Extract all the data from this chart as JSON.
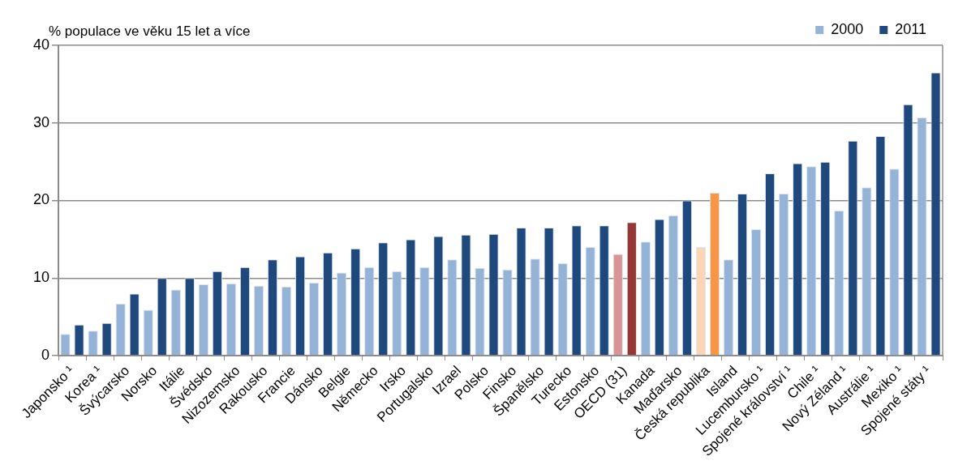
{
  "chart_data": {
    "type": "bar",
    "ylabel": "% populace ve věku 15 let a více",
    "categories": [
      "Japonsko ¹",
      "Korea ¹",
      "Švýcarsko",
      "Norsko",
      "Itálie",
      "Švédsko",
      "Nizozemsko",
      "Rakousko",
      "Francie",
      "Dánsko",
      "Belgie",
      "Německo",
      "Irsko",
      "Portugalsko",
      "Izrael",
      "Polsko",
      "Finsko",
      "Španělsko",
      "Turecko",
      "Estonsko",
      "OECD (31)",
      "Kanada",
      "Maďarsko",
      "Česká republika",
      "Island",
      "Lucembursko ¹",
      "Spojené království ¹",
      "Chile ¹",
      "Nový Zéland ¹",
      "Austrálie ¹",
      "Mexiko ¹",
      "Spojené státy ¹"
    ],
    "series": [
      {
        "name": "2000",
        "color": "#95b3d7",
        "colors": [
          "#95b3d7",
          "#95b3d7",
          "#95b3d7",
          "#95b3d7",
          "#95b3d7",
          "#95b3d7",
          "#95b3d7",
          "#95b3d7",
          "#95b3d7",
          "#95b3d7",
          "#95b3d7",
          "#95b3d7",
          "#95b3d7",
          "#95b3d7",
          "#95b3d7",
          "#95b3d7",
          "#95b3d7",
          "#95b3d7",
          "#95b3d7",
          "#95b3d7",
          "#d99594",
          "#95b3d7",
          "#95b3d7",
          "#fcd5b5",
          "#95b3d7",
          "#95b3d7",
          "#95b3d7",
          "#95b3d7",
          "#95b3d7",
          "#95b3d7",
          "#95b3d7",
          "#95b3d7"
        ],
        "values": [
          2.8,
          3.2,
          6.7,
          5.9,
          8.5,
          9.2,
          9.3,
          9.0,
          8.9,
          9.4,
          10.7,
          11.4,
          10.9,
          11.4,
          12.4,
          11.3,
          11.1,
          12.5,
          11.9,
          14.0,
          13.1,
          14.7,
          18.1,
          14.0,
          12.4,
          16.3,
          20.9,
          24.4,
          18.7,
          21.7,
          24.1,
          30.7
        ]
      },
      {
        "name": "2011",
        "color": "#1f497d",
        "colors": [
          "#1f497d",
          "#1f497d",
          "#1f497d",
          "#1f497d",
          "#1f497d",
          "#1f497d",
          "#1f497d",
          "#1f497d",
          "#1f497d",
          "#1f497d",
          "#1f497d",
          "#1f497d",
          "#1f497d",
          "#1f497d",
          "#1f497d",
          "#1f497d",
          "#1f497d",
          "#1f497d",
          "#1f497d",
          "#1f497d",
          "#953735",
          "#1f497d",
          "#1f497d",
          "#f79646",
          "#1f497d",
          "#1f497d",
          "#1f497d",
          "#1f497d",
          "#1f497d",
          "#1f497d",
          "#1f497d",
          "#1f497d"
        ],
        "values": [
          4.0,
          4.2,
          8.0,
          10.0,
          10.0,
          10.9,
          11.4,
          12.4,
          12.8,
          13.3,
          13.8,
          14.6,
          15.0,
          15.4,
          15.6,
          15.7,
          16.5,
          16.5,
          16.8,
          16.8,
          17.2,
          17.6,
          20.0,
          21.0,
          20.9,
          23.5,
          24.8,
          25.0,
          27.7,
          28.3,
          32.4,
          36.5
        ]
      }
    ],
    "ylim": [
      0,
      40
    ],
    "yticks": [
      0,
      10,
      20,
      30,
      40
    ],
    "grid": "y",
    "legend": "top right"
  }
}
